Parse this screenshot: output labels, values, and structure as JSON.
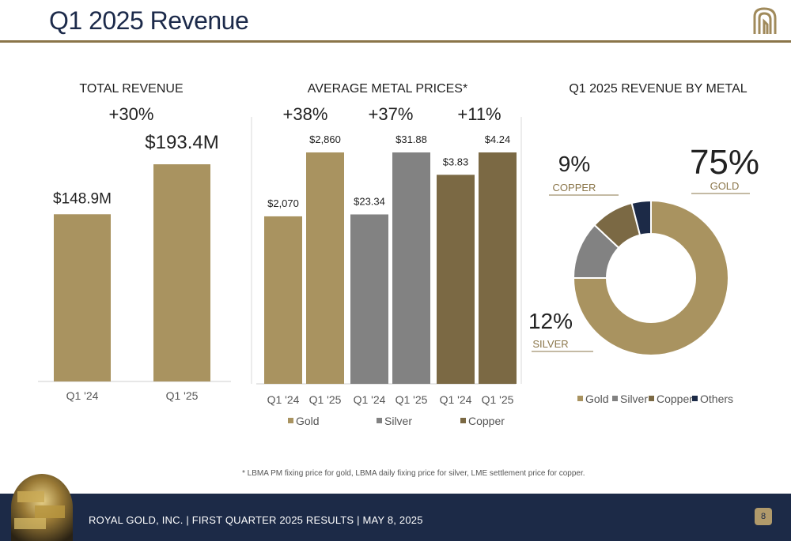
{
  "page": {
    "title": "Q1 2025 Revenue",
    "footnote": "*    LBMA PM fixing price for gold, LBMA daily fixing price for silver, LME settlement price for copper.",
    "footer": "ROYAL GOLD, INC.   |   FIRST QUARTER 2025 RESULTS   |   MAY 8, 2025",
    "page_number": "8",
    "logo_icon": "royal-gold-logo",
    "footer_image": "gold-bars-photo"
  },
  "colors": {
    "navy": "#1c2a47",
    "rule": "#8a7549",
    "gold": "#a99360",
    "silver": "#828282",
    "copper": "#7b6944",
    "others": "#1c2a47"
  },
  "chart_data": [
    {
      "type": "bar",
      "title": "TOTAL REVENUE",
      "change_label": "+30%",
      "categories": [
        "Q1 '24",
        "Q1 '25"
      ],
      "values": [
        148.9,
        193.4
      ],
      "data_labels": [
        "$148.9M",
        "$193.4M"
      ],
      "unit": "$M",
      "ylim": [
        0,
        193.4
      ],
      "xlabel": "",
      "ylabel": "",
      "grid": false
    },
    {
      "type": "bar",
      "title": "AVERAGE METAL PRICES*",
      "categories": [
        "Q1 '24",
        "Q1 '25",
        "Q1 '24",
        "Q1 '25",
        "Q1 '24",
        "Q1 '25"
      ],
      "groups": [
        {
          "name": "Gold",
          "change_label": "+38%",
          "values": [
            2070,
            2860
          ],
          "data_labels": [
            "$2,070",
            "$2,860"
          ]
        },
        {
          "name": "Silver",
          "change_label": "+37%",
          "values": [
            23.34,
            31.88
          ],
          "data_labels": [
            "$23.34",
            "$31.88"
          ]
        },
        {
          "name": "Copper",
          "change_label": "+11%",
          "values": [
            3.83,
            4.24
          ],
          "data_labels": [
            "$3.83",
            "$4.24"
          ]
        }
      ],
      "scale_note": "each metal scaled to its own Q1 '25 maximum",
      "legend": [
        "Gold",
        "Silver",
        "Copper"
      ],
      "legend_position": "bottom",
      "grid": false
    },
    {
      "type": "pie",
      "title": "Q1 2025 REVENUE BY METAL",
      "style": "donut",
      "slices": [
        {
          "name": "Gold",
          "value": 75,
          "label": "75%",
          "caption": "GOLD"
        },
        {
          "name": "Silver",
          "value": 12,
          "label": "12%",
          "caption": "SILVER"
        },
        {
          "name": "Copper",
          "value": 9,
          "label": "9%",
          "caption": "COPPER"
        },
        {
          "name": "Others",
          "value": 4
        }
      ],
      "legend": [
        "Gold",
        "Silver",
        "Copper",
        "Others"
      ],
      "legend_position": "bottom"
    }
  ]
}
